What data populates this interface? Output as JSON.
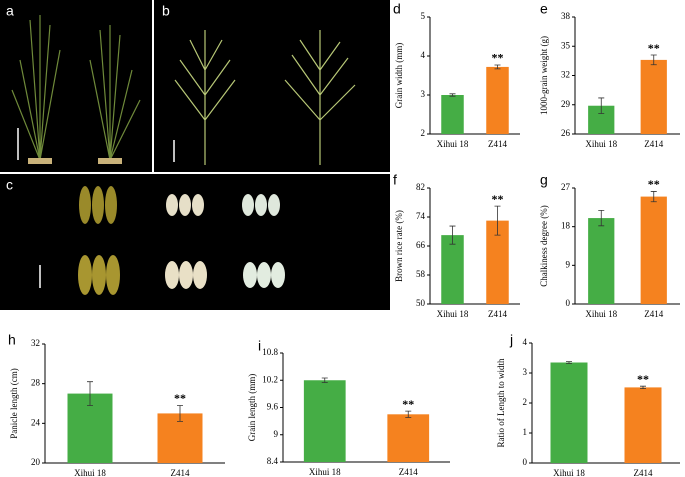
{
  "figure": {
    "panels": [
      "a",
      "b",
      "c"
    ]
  },
  "chart_data": [
    {
      "type": "bar",
      "panel": "d",
      "ylabel": "Grain width (mm)",
      "categories": [
        "Xihui 18",
        "Z414"
      ],
      "values": [
        3.0,
        3.72
      ],
      "errors": [
        0.03,
        0.05
      ],
      "colors": [
        "#45ad45",
        "#f5821f"
      ],
      "significance": [
        null,
        "**"
      ],
      "ylim": [
        2,
        5
      ],
      "yticks": [
        2,
        3,
        4,
        5
      ]
    },
    {
      "type": "bar",
      "panel": "e",
      "ylabel": "1000-grain weight (g)",
      "categories": [
        "Xihui 18",
        "Z414"
      ],
      "values": [
        28.9,
        33.6
      ],
      "errors": [
        0.8,
        0.5
      ],
      "colors": [
        "#45ad45",
        "#f5821f"
      ],
      "significance": [
        null,
        "**"
      ],
      "ylim": [
        26,
        38
      ],
      "yticks": [
        26,
        29,
        32,
        35,
        38
      ]
    },
    {
      "type": "bar",
      "panel": "f",
      "ylabel": "Brown rice rate (%)",
      "categories": [
        "Xihui 18",
        "Z414"
      ],
      "values": [
        69,
        73
      ],
      "errors": [
        2.5,
        4
      ],
      "colors": [
        "#45ad45",
        "#f5821f"
      ],
      "significance": [
        null,
        "**"
      ],
      "ylim": [
        50,
        82
      ],
      "yticks": [
        50,
        58,
        66,
        74,
        82
      ]
    },
    {
      "type": "bar",
      "panel": "g",
      "ylabel": "Chalkiness degree (%)",
      "categories": [
        "Xihui 18",
        "Z414"
      ],
      "values": [
        20,
        25
      ],
      "errors": [
        1.8,
        1.2
      ],
      "colors": [
        "#45ad45",
        "#f5821f"
      ],
      "significance": [
        null,
        "**"
      ],
      "ylim": [
        0,
        27
      ],
      "yticks": [
        0,
        9,
        18,
        27
      ]
    },
    {
      "type": "bar",
      "panel": "h",
      "ylabel": "Panicle length (cm)",
      "categories": [
        "Xihui 18",
        "Z414"
      ],
      "values": [
        27,
        25
      ],
      "errors": [
        1.2,
        0.8
      ],
      "colors": [
        "#45ad45",
        "#f5821f"
      ],
      "significance": [
        null,
        "**"
      ],
      "ylim": [
        20,
        32
      ],
      "yticks": [
        20,
        24,
        28,
        32
      ]
    },
    {
      "type": "bar",
      "panel": "i",
      "ylabel": "Grain length (mm)",
      "categories": [
        "Xihui 18",
        "Z414"
      ],
      "values": [
        10.2,
        9.45
      ],
      "errors": [
        0.05,
        0.07
      ],
      "colors": [
        "#45ad45",
        "#f5821f"
      ],
      "significance": [
        null,
        "**"
      ],
      "ylim": [
        8.4,
        10.8
      ],
      "yticks": [
        8.4,
        9,
        9.6,
        10.2,
        10.8
      ]
    },
    {
      "type": "bar",
      "panel": "j",
      "ylabel": "Ratio of Length to width",
      "categories": [
        "Xihui 18",
        "Z414"
      ],
      "values": [
        3.35,
        2.52
      ],
      "errors": [
        0.03,
        0.04
      ],
      "colors": [
        "#45ad45",
        "#f5821f"
      ],
      "significance": [
        null,
        "**"
      ],
      "ylim": [
        0,
        4
      ],
      "yticks": [
        0,
        1,
        2,
        3,
        4
      ]
    }
  ]
}
